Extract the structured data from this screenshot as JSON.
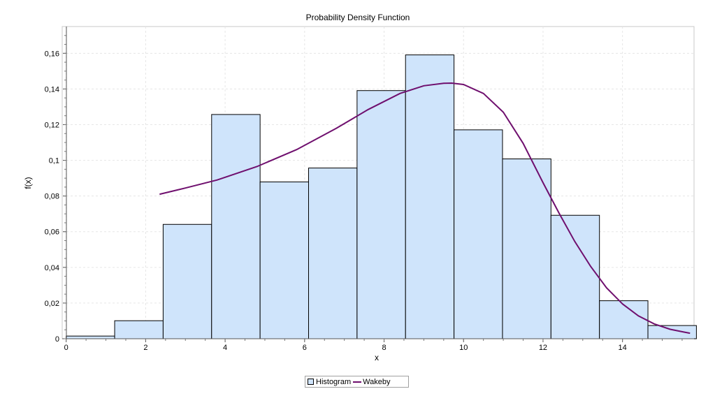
{
  "chart_data": {
    "type": "bar",
    "title": "Probability Density Function",
    "xlabel": "x",
    "ylabel": "f(x)",
    "xlim": [
      -0.1,
      15.8
    ],
    "ylim": [
      0,
      0.175
    ],
    "x_ticks": [
      "0",
      "2",
      "4",
      "6",
      "8",
      "10",
      "12",
      "14"
    ],
    "y_ticks": [
      "0",
      "0,02",
      "0,04",
      "0,06",
      "0,08",
      "0,1",
      "0,12",
      "0,14",
      "0,16"
    ],
    "grid": true,
    "legend_position": "bottom-center",
    "series": [
      {
        "name": "Histogram",
        "type": "histogram",
        "color": "#cfe4fb",
        "bins": [
          {
            "x0": 0.0,
            "x1": 1.22,
            "value": 0.0015
          },
          {
            "x0": 1.22,
            "x1": 2.44,
            "value": 0.0101
          },
          {
            "x0": 2.44,
            "x1": 3.66,
            "value": 0.0641
          },
          {
            "x0": 3.66,
            "x1": 4.88,
            "value": 0.1257
          },
          {
            "x0": 4.88,
            "x1": 6.1,
            "value": 0.0879
          },
          {
            "x0": 6.1,
            "x1": 7.32,
            "value": 0.0957
          },
          {
            "x0": 7.32,
            "x1": 8.54,
            "value": 0.1391
          },
          {
            "x0": 8.54,
            "x1": 9.76,
            "value": 0.1591
          },
          {
            "x0": 9.76,
            "x1": 10.98,
            "value": 0.1171
          },
          {
            "x0": 10.98,
            "x1": 12.2,
            "value": 0.1008
          },
          {
            "x0": 12.2,
            "x1": 13.42,
            "value": 0.0692
          },
          {
            "x0": 13.42,
            "x1": 14.64,
            "value": 0.0213
          },
          {
            "x0": 14.64,
            "x1": 15.86,
            "value": 0.0074
          }
        ]
      },
      {
        "name": "Wakeby",
        "type": "line",
        "color": "#6f0f6e",
        "x": [
          2.35,
          3.0,
          3.8,
          4.8,
          5.8,
          6.8,
          7.6,
          8.4,
          9.0,
          9.5,
          9.7,
          10.0,
          10.5,
          11.0,
          11.5,
          12.0,
          12.4,
          12.8,
          13.2,
          13.6,
          14.0,
          14.4,
          14.8,
          15.2,
          15.55,
          15.7
        ],
        "y": [
          0.081,
          0.0845,
          0.089,
          0.0965,
          0.106,
          0.118,
          0.1285,
          0.1375,
          0.1418,
          0.1432,
          0.1433,
          0.1425,
          0.1375,
          0.127,
          0.1095,
          0.0875,
          0.0705,
          0.0545,
          0.0405,
          0.0285,
          0.0195,
          0.0128,
          0.0083,
          0.0053,
          0.0037,
          0.0031
        ]
      }
    ]
  },
  "legend": {
    "histogram_label": "Histogram",
    "wakeby_label": "Wakeby"
  }
}
